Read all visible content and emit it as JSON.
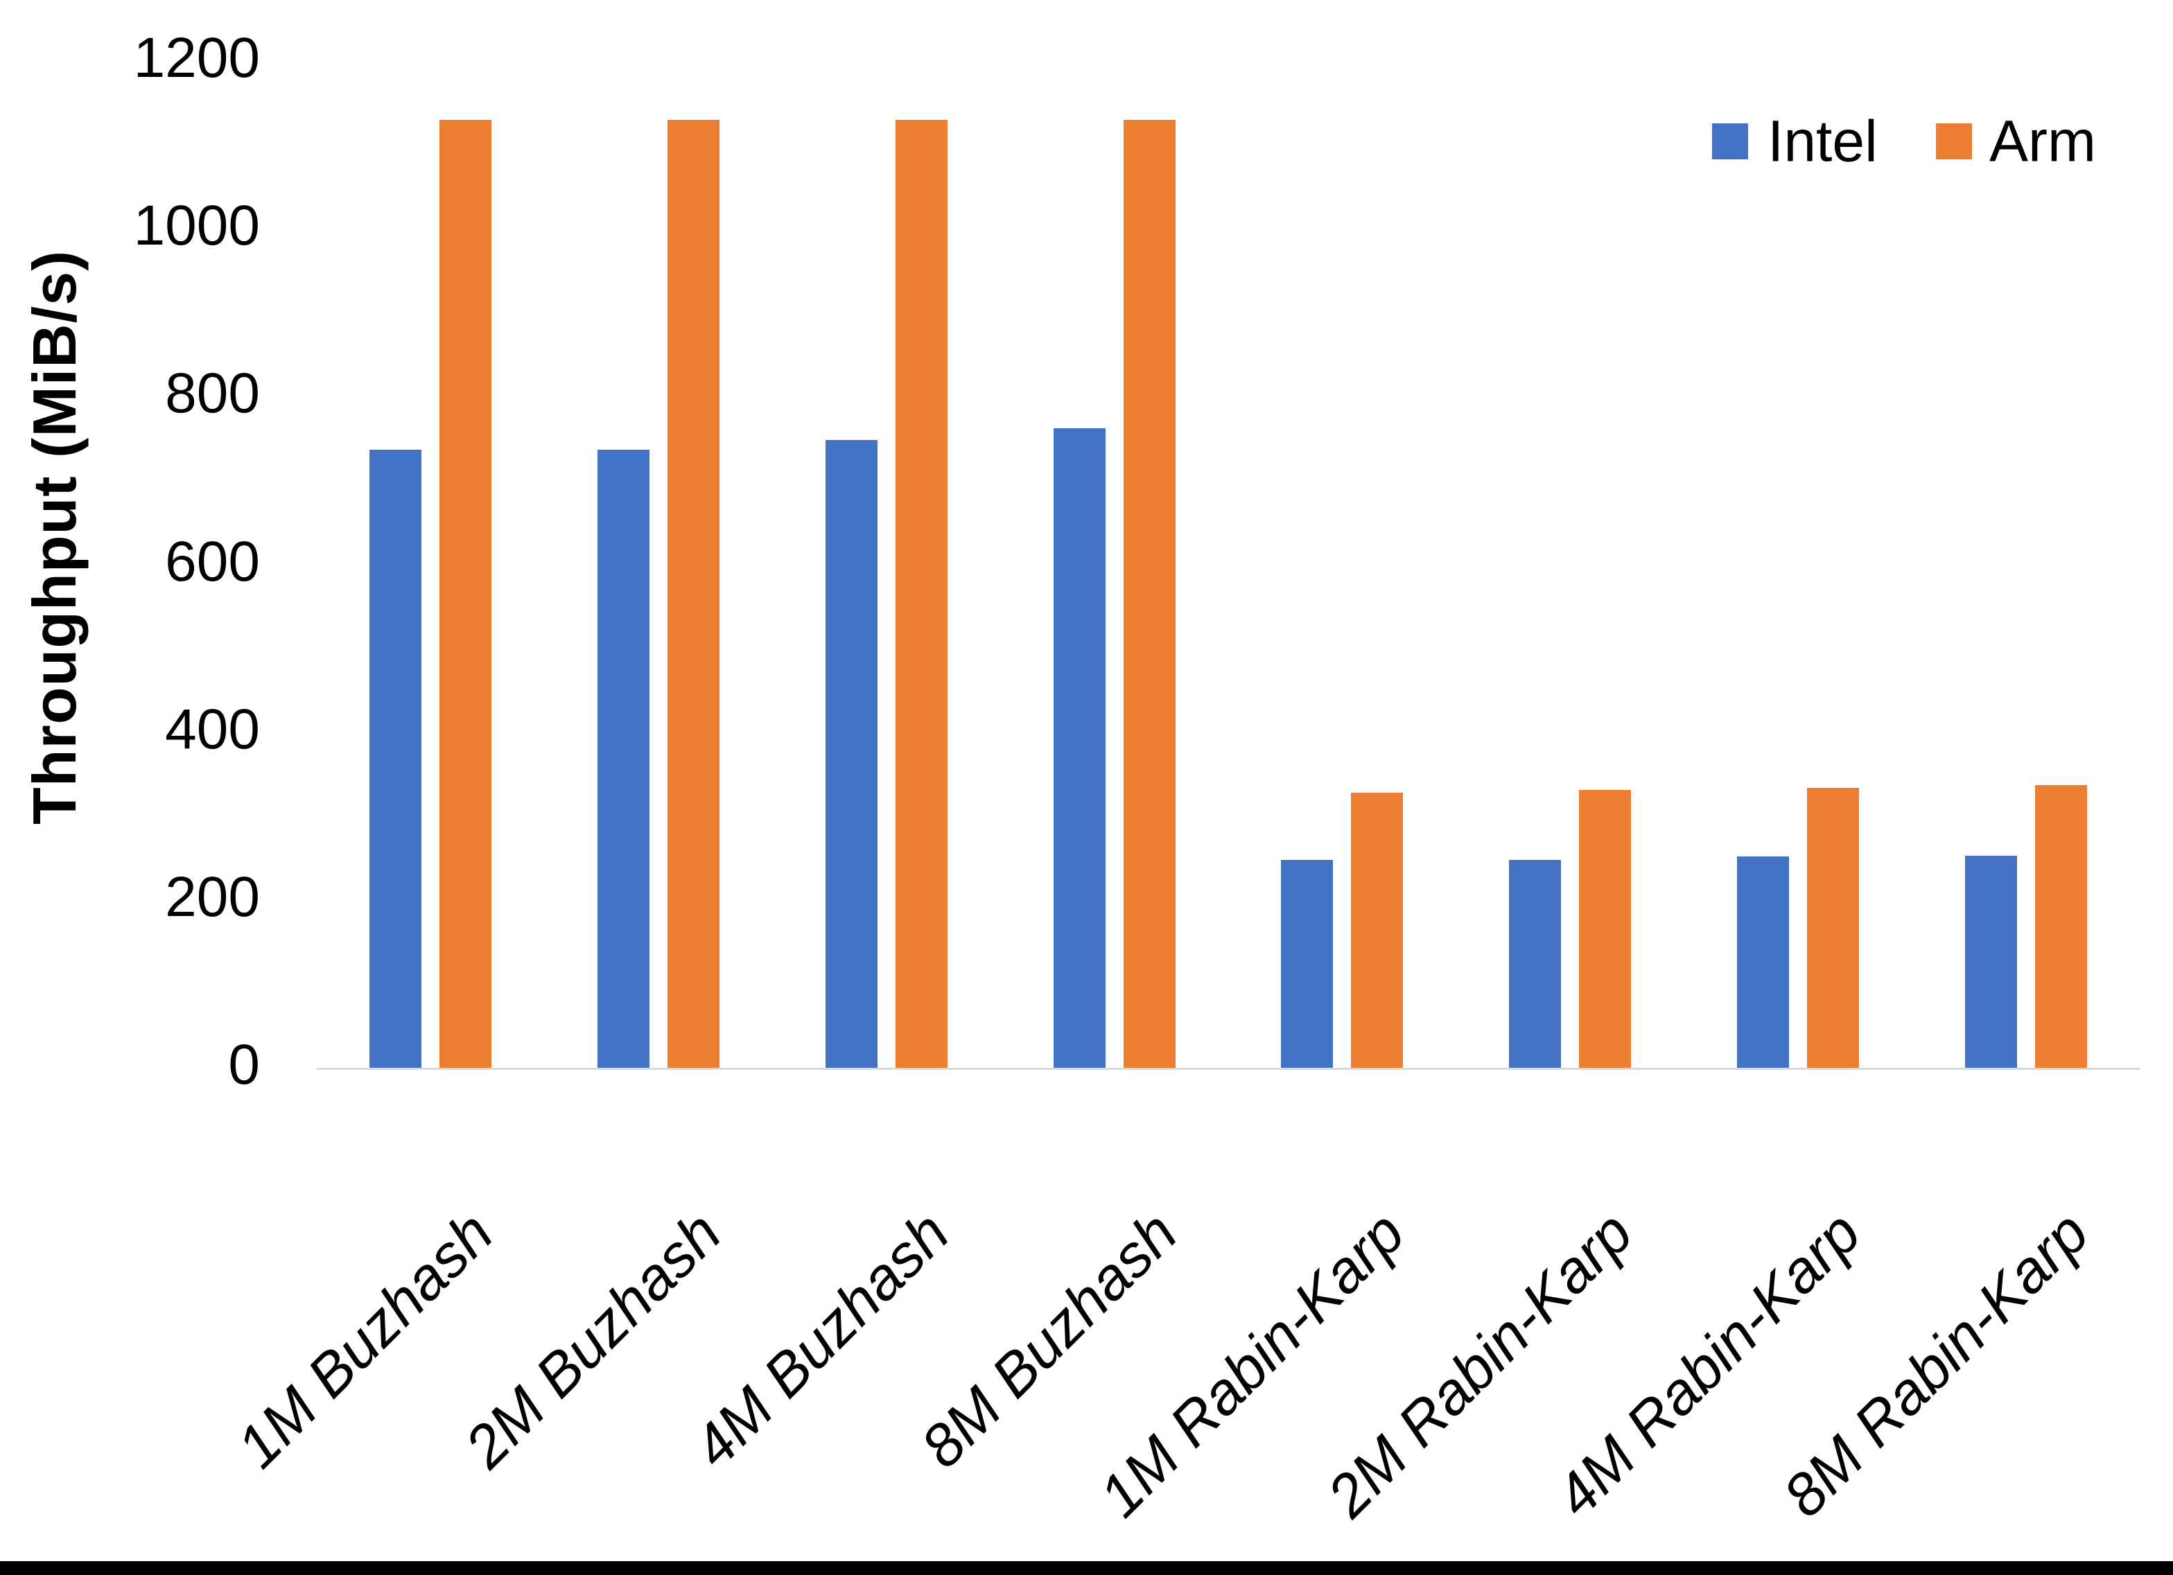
{
  "chart_data": {
    "type": "bar",
    "title": "",
    "categories": [
      "1M Buzhash",
      "2M Buzhash",
      "4M Buzhash",
      "8M Buzhash",
      "1M Rabin-Karp",
      "2M Rabin-Karp",
      "4M Rabin-Karp",
      "8M Rabin-Karp"
    ],
    "series": [
      {
        "name": "Intel",
        "color": "#4472C4",
        "values": [
          737,
          737,
          748,
          762,
          248,
          248,
          252,
          253
        ]
      },
      {
        "name": "Arm",
        "color": "#ED7D31",
        "values": [
          1130,
          1130,
          1130,
          1130,
          328,
          331,
          334,
          337
        ]
      }
    ],
    "xlabel": "",
    "ylabel": "Throughput (MiB/s)",
    "ylim": [
      0,
      1200
    ],
    "yticks": [
      "0",
      "200",
      "400",
      "600",
      "800",
      "1000",
      "1200"
    ],
    "grid": false,
    "legend_position": "top-right",
    "axis_line_color": "#D9D9D9",
    "text_color": "#000000"
  }
}
